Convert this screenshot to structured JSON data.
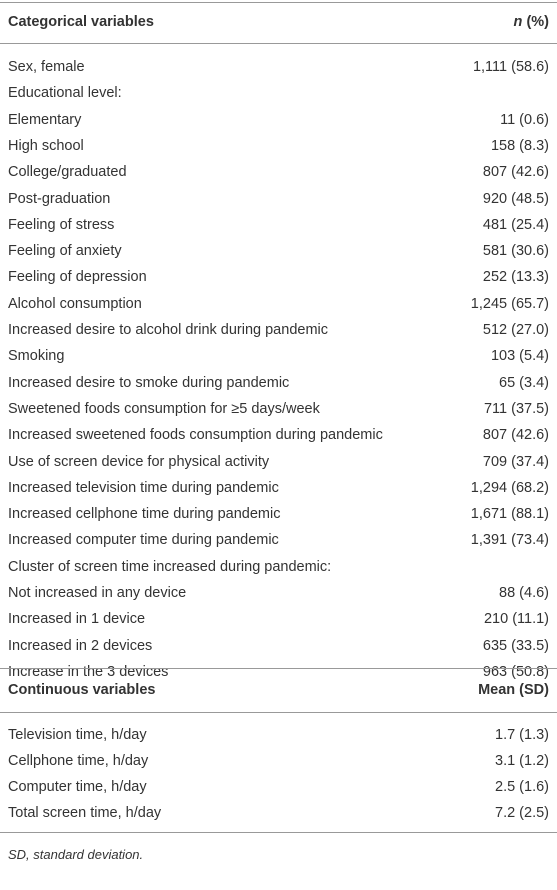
{
  "table": {
    "sections": [
      {
        "header": {
          "label": "Categorical variables",
          "stat_italic": "n",
          "stat": "(%)"
        },
        "rows": [
          [
            "Sex, female",
            "1,111 (58.6)"
          ],
          [
            "Educational level:",
            ""
          ],
          [
            "Elementary",
            "11 (0.6)"
          ],
          [
            "High school",
            "158 (8.3)"
          ],
          [
            "College/graduated",
            "807 (42.6)"
          ],
          [
            "Post-graduation",
            "920 (48.5)"
          ],
          [
            "Feeling of stress",
            "481 (25.4)"
          ],
          [
            "Feeling of anxiety",
            "581 (30.6)"
          ],
          [
            "Feeling of depression",
            "252 (13.3)"
          ],
          [
            "Alcohol consumption",
            "1,245 (65.7)"
          ],
          [
            "Increased desire to alcohol drink during pandemic",
            "512 (27.0)"
          ],
          [
            "Smoking",
            "103 (5.4)"
          ],
          [
            "Increased desire to smoke during pandemic",
            "65 (3.4)"
          ],
          [
            "Sweetened foods consumption for ≥5 days/week",
            "711 (37.5)"
          ],
          [
            "Increased sweetened foods consumption during pandemic",
            "807 (42.6)"
          ],
          [
            "Use of screen device for physical activity",
            "709 (37.4)"
          ],
          [
            "Increased television time during pandemic",
            "1,294 (68.2)"
          ],
          [
            "Increased cellphone time during pandemic",
            "1,671 (88.1)"
          ],
          [
            "Increased computer time during pandemic",
            "1,391 (73.4)"
          ],
          [
            "Cluster of screen time increased during pandemic:",
            ""
          ],
          [
            "Not increased in any device",
            "88 (4.6)"
          ],
          [
            "Increased in 1 device",
            "210 (11.1)"
          ],
          [
            "Increased in 2 devices",
            "635 (33.5)"
          ],
          [
            "Increase in the 3 devices",
            "963 (50.8)"
          ]
        ]
      },
      {
        "header": {
          "label": "Continuous variables",
          "stat": "Mean (SD)"
        },
        "rows": [
          [
            "Television time, h/day",
            "1.7 (1.3)"
          ],
          [
            "Cellphone time, h/day",
            "3.1 (1.2)"
          ],
          [
            "Computer time, h/day",
            "2.5 (1.6)"
          ],
          [
            "Total screen time, h/day",
            "7.2 (2.5)"
          ]
        ]
      }
    ],
    "footnote": "SD, standard deviation."
  }
}
